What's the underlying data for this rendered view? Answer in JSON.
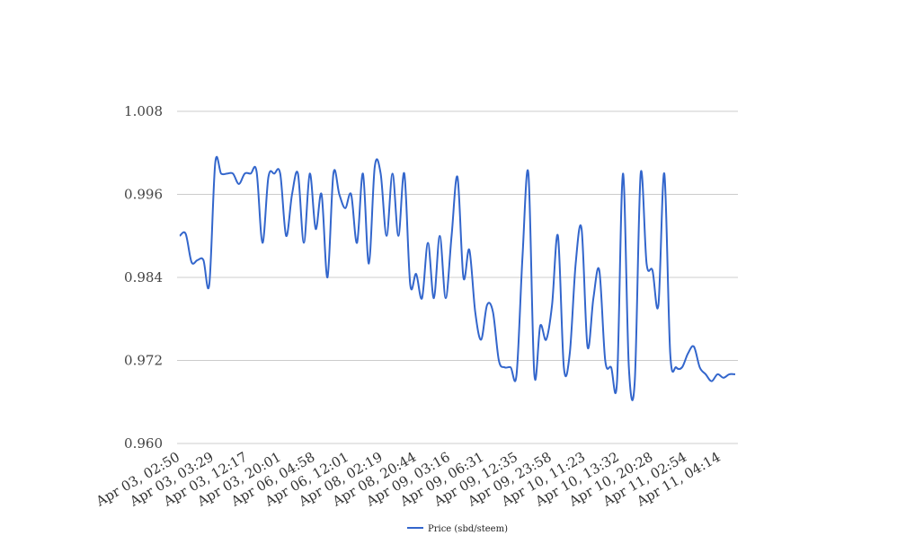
{
  "chart_data": {
    "type": "line",
    "title": "",
    "xlabel": "",
    "ylabel": "",
    "ylim": [
      0.96,
      1.008
    ],
    "yticks": [
      "0.960",
      "0.972",
      "0.984",
      "0.996",
      "1.008"
    ],
    "grid": true,
    "legend_position": "bottom",
    "x_tick_labels": [
      "Apr 03, 02:50",
      "Apr 03, 03:29",
      "Apr 03, 12:17",
      "Apr 03, 20:01",
      "Apr 06, 04:58",
      "Apr 06, 12:01",
      "Apr 08, 02:19",
      "Apr 08, 20:44",
      "Apr 09, 03:16",
      "Apr 09, 06:31",
      "Apr 09, 12:35",
      "Apr 09, 23:58",
      "Apr 10, 11:23",
      "Apr 10, 13:32",
      "Apr 10, 20:28",
      "Apr 11, 02:54",
      "Apr 11, 04:14"
    ],
    "series": [
      {
        "name": "Price (sbd/steem)",
        "color": "#3366cc",
        "values": [
          0.99,
          0.9903,
          0.9862,
          0.9865,
          0.9865,
          0.983,
          1.0005,
          0.999,
          0.999,
          0.999,
          0.9975,
          0.999,
          0.999,
          0.9993,
          0.989,
          0.9985,
          0.999,
          0.999,
          0.99,
          0.996,
          0.999,
          0.989,
          0.999,
          0.991,
          0.996,
          0.984,
          0.999,
          0.996,
          0.994,
          0.996,
          0.989,
          0.999,
          0.986,
          1.0,
          0.999,
          0.99,
          0.999,
          0.99,
          0.999,
          0.983,
          0.9845,
          0.981,
          0.989,
          0.981,
          0.99,
          0.981,
          0.99,
          0.9985,
          0.984,
          0.988,
          0.979,
          0.975,
          0.98,
          0.979,
          0.972,
          0.971,
          0.971,
          0.97,
          0.987,
          0.999,
          0.97,
          0.977,
          0.975,
          0.98,
          0.99,
          0.971,
          0.973,
          0.986,
          0.991,
          0.974,
          0.981,
          0.985,
          0.972,
          0.971,
          0.969,
          0.999,
          0.971,
          0.969,
          0.999,
          0.986,
          0.985,
          0.98,
          0.999,
          0.973,
          0.971,
          0.971,
          0.973,
          0.974,
          0.971,
          0.97,
          0.969,
          0.97,
          0.9695,
          0.97,
          0.97
        ]
      }
    ]
  }
}
